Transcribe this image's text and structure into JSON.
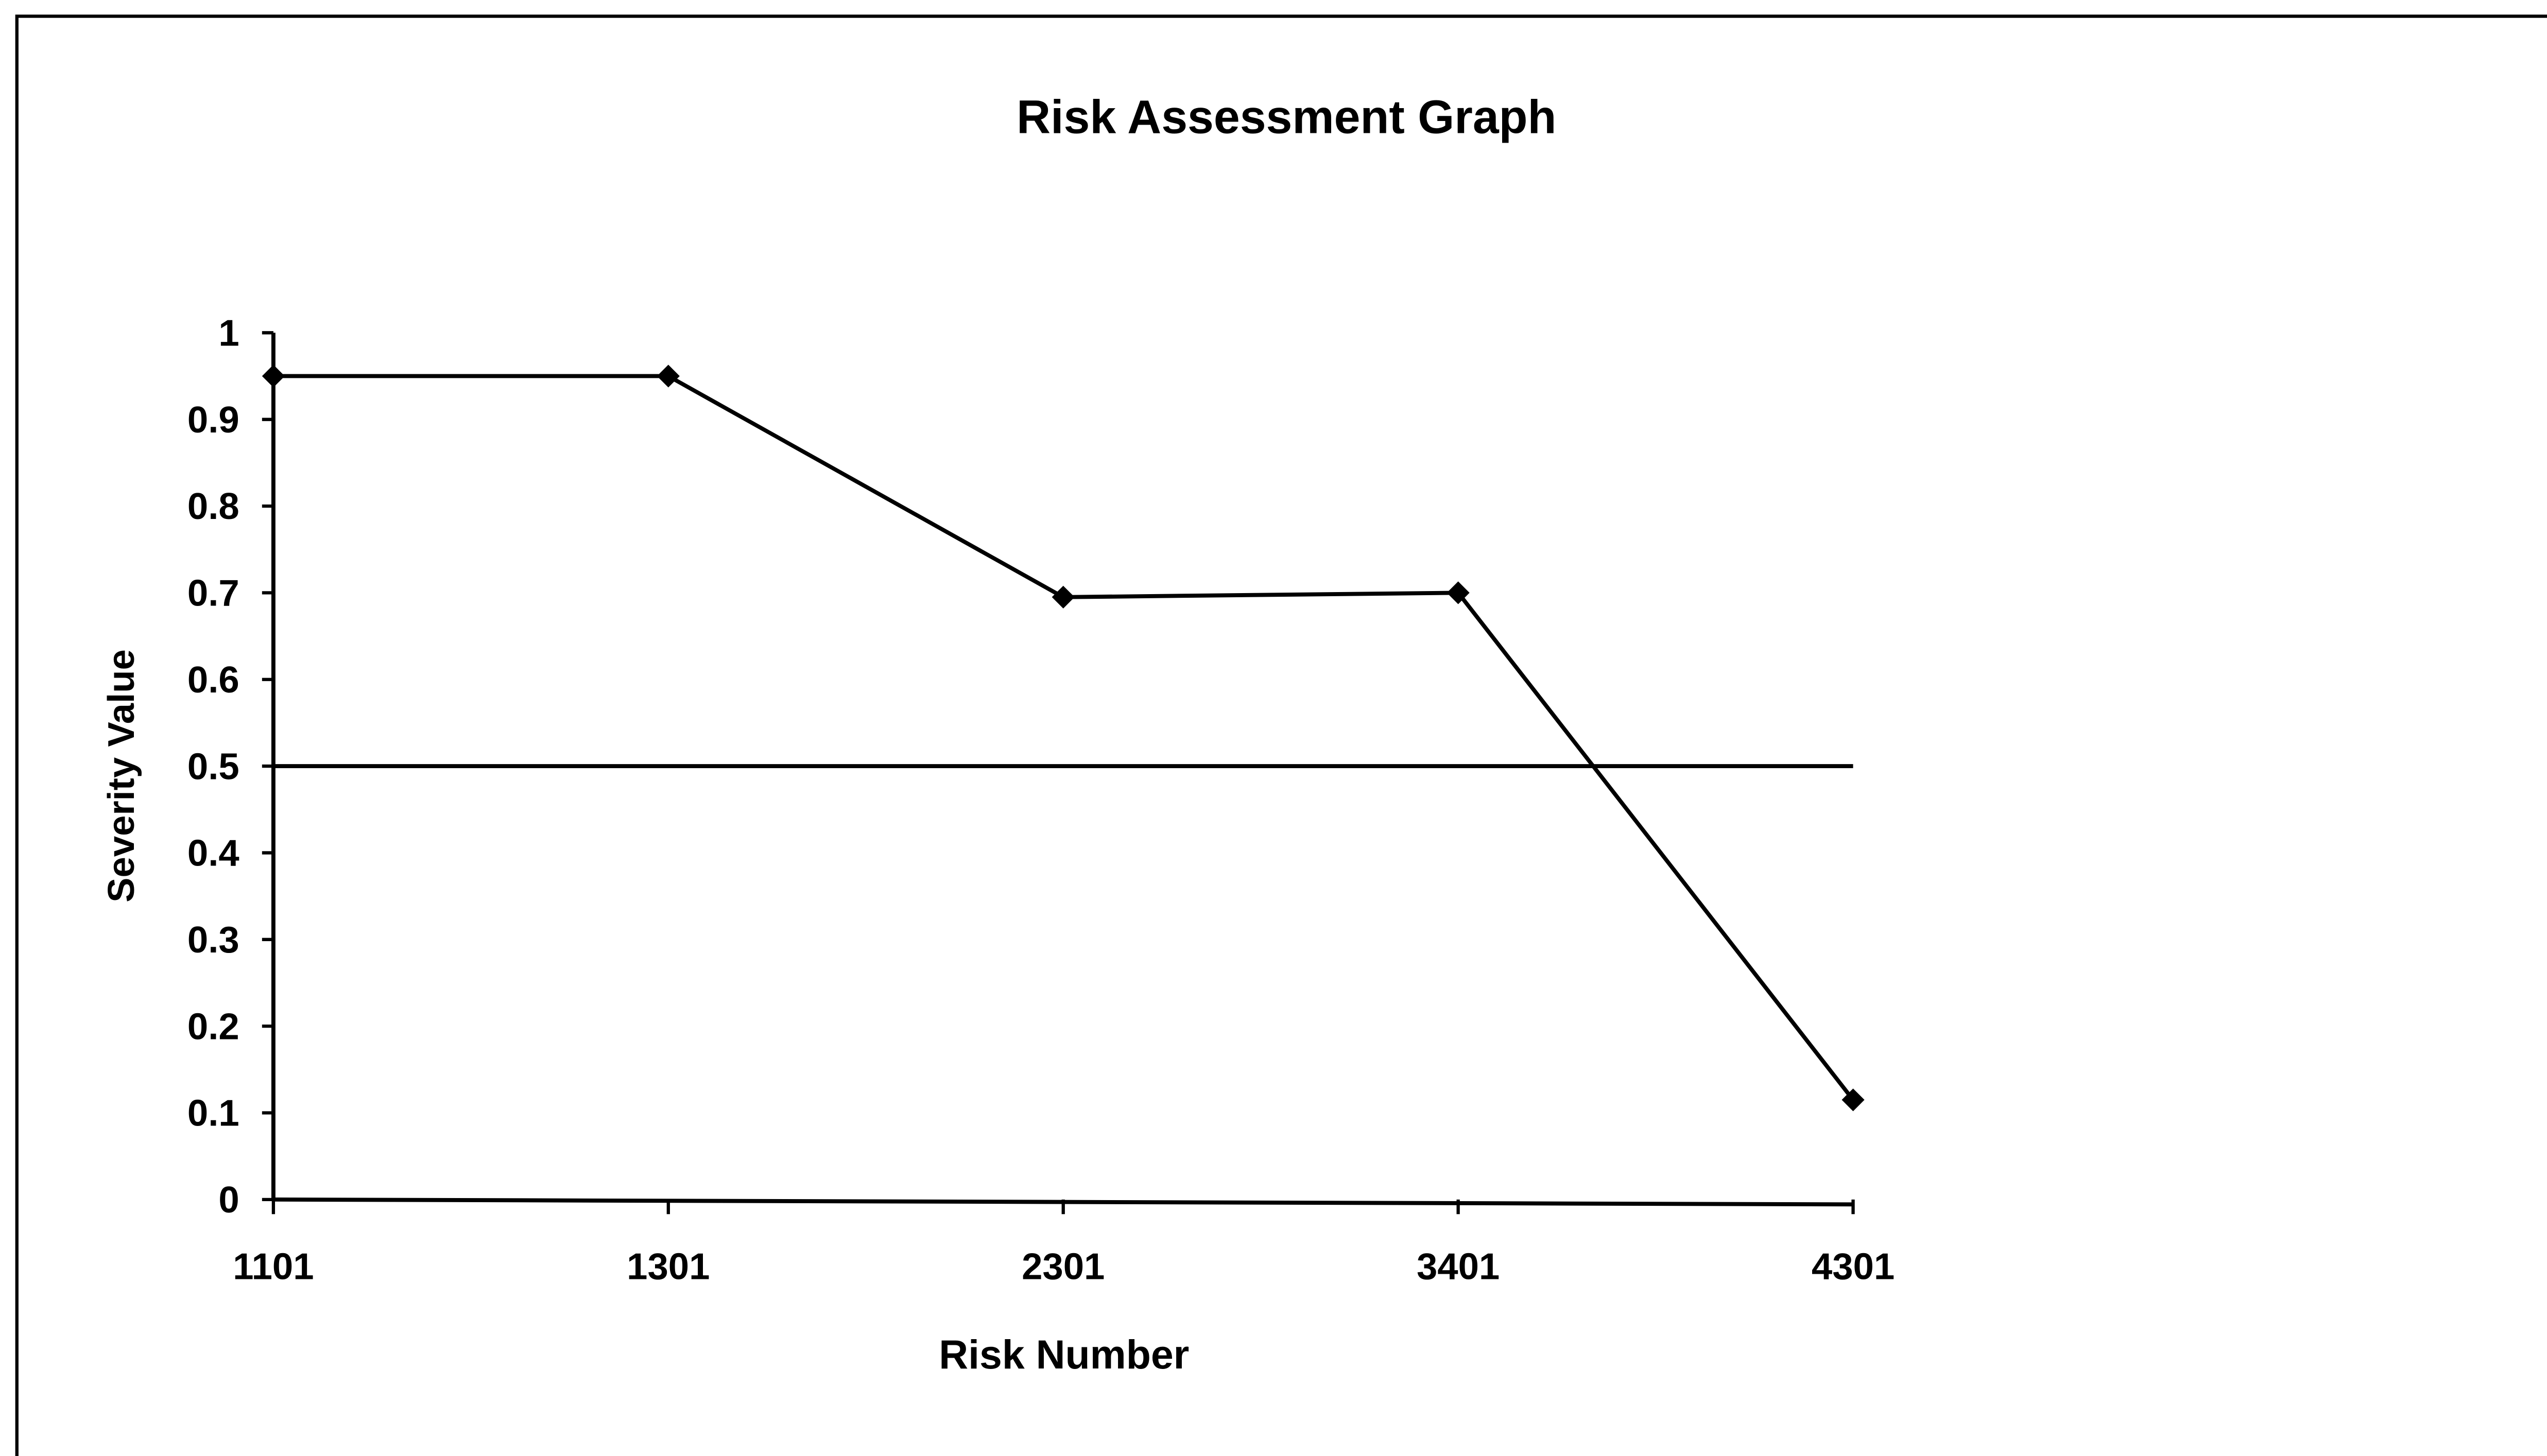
{
  "chart_data": {
    "type": "line",
    "title": "Risk Assessment Graph",
    "x_label": "Risk Number",
    "y_label": "Severity Value",
    "categories": [
      "1101",
      "1301",
      "2301",
      "3401",
      "4301"
    ],
    "series": [
      {
        "color": "#000000",
        "markers": true,
        "values": [
          0.95,
          0.95,
          0.695,
          0.7,
          0.115
        ]
      },
      {
        "color": "#000000",
        "markers": false,
        "values": [
          0.5,
          0.5,
          0.5,
          0.5,
          0.5
        ]
      }
    ],
    "ylim": [
      0,
      1
    ],
    "yticks": [
      0,
      0.1,
      0.2,
      0.3,
      0.4,
      0.5,
      0.6,
      0.7,
      0.8,
      0.9,
      1
    ],
    "grid": false
  }
}
